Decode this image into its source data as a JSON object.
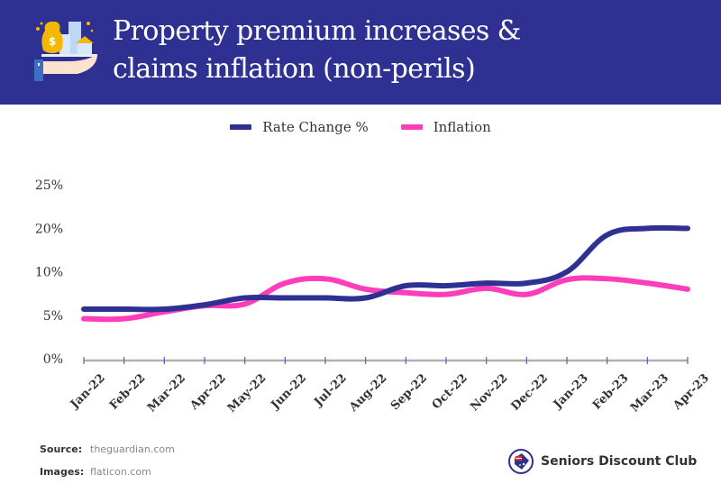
{
  "header": {
    "title_line1": "Property premium increases &",
    "title_line2": "claims inflation (non-perils)",
    "icon": "money-bag-buildings-hand-icon"
  },
  "footer": {
    "source_label": "Source:",
    "source_value": "theguardian.com",
    "images_label": "Images:",
    "images_value": "flaticon.com",
    "brand_name": "Seniors Discount Club",
    "brand_icon": "australia-flag-tag-icon"
  },
  "chart_data": {
    "type": "line",
    "title": "Property premium increases & claims inflation (non-perils)",
    "xlabel": "",
    "ylabel": "",
    "categories": [
      "Jan-22",
      "Feb-22",
      "Mar-22",
      "Apr-22",
      "May-22",
      "Jun-22",
      "Jul-22",
      "Aug-22",
      "Sep-22",
      "Oct-22",
      "Nov-22",
      "Dec-22",
      "Jan-23",
      "Feb-23",
      "Mar-23",
      "Apr-23"
    ],
    "y_ticks": [
      "0%",
      "5%",
      "10%",
      "20%",
      "25%"
    ],
    "y_tick_values": [
      0,
      5,
      10,
      20,
      25
    ],
    "y_scale_note": "tick labels equally spaced (non-linear axis)",
    "grid": false,
    "legend_position": "top-center",
    "series": [
      {
        "name": "Rate Change %",
        "color": "#2e3192",
        "values": [
          5.7,
          5.7,
          5.7,
          6.2,
          7.0,
          7.0,
          7.0,
          7.0,
          8.4,
          8.4,
          8.7,
          8.7,
          10.0,
          18.5,
          20.0,
          20.0
        ]
      },
      {
        "name": "Inflation",
        "color": "#ff3dbb",
        "values": [
          4.6,
          4.6,
          5.4,
          6.1,
          6.3,
          8.7,
          9.2,
          8.0,
          7.6,
          7.4,
          8.1,
          7.4,
          9.1,
          9.2,
          8.7,
          8.0
        ]
      }
    ]
  }
}
